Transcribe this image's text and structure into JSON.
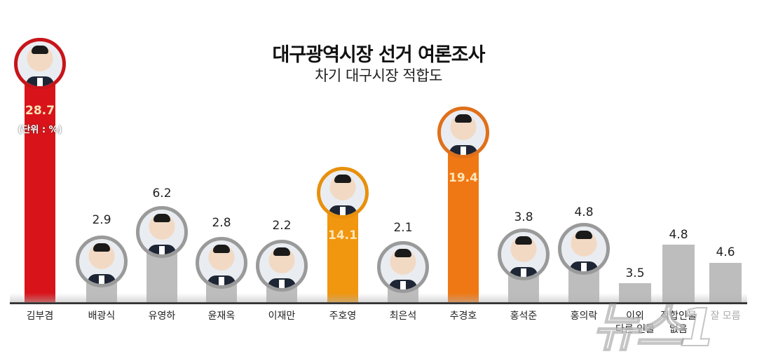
{
  "header": {
    "title": "대구광역시장 선거 여론조사",
    "subtitle": "차기 대구시장 적합도"
  },
  "unit_note": "(단위 : %)",
  "watermark": "뉴스1",
  "colors": {
    "kim_bujeom": "#d8141a",
    "ju_hoyeong": "#f0960f",
    "chu_gyeongho": "#f07814",
    "others": "#bdbdbd",
    "baseline": "#333333"
  },
  "chart_data": {
    "type": "bar",
    "title": "대구광역시장 선거 여론조사",
    "subtitle": "차기 대구시장 적합도",
    "unit": "%",
    "xlabel": "",
    "ylabel": "",
    "grid": false,
    "legend": "none",
    "categories": [
      "김부겸",
      "배광식",
      "유영하",
      "윤재옥",
      "이재만",
      "주호영",
      "최은석",
      "추경호",
      "홍석준",
      "홍의락",
      "이외 다른 인물",
      "적합인물 없음",
      "잘 모름"
    ],
    "values": [
      28.7,
      2.9,
      6.2,
      2.8,
      2.2,
      14.1,
      2.1,
      19.4,
      3.8,
      4.8,
      3.5,
      4.8,
      4.6
    ],
    "ylim": [
      0,
      30
    ]
  },
  "bars": [
    {
      "name": "김부겸",
      "value": "28.7"
    },
    {
      "name": "배광식",
      "value": "2.9"
    },
    {
      "name": "유영하",
      "value": "6.2"
    },
    {
      "name": "윤재옥",
      "value": "2.8"
    },
    {
      "name": "이재만",
      "value": "2.2"
    },
    {
      "name": "주호영",
      "value": "14.1"
    },
    {
      "name": "최은석",
      "value": "2.1"
    },
    {
      "name": "추경호",
      "value": "19.4"
    },
    {
      "name": "홍석준",
      "value": "3.8"
    },
    {
      "name": "홍의락",
      "value": "4.8"
    },
    {
      "name": "이외\n다른 인물",
      "value": "3.5"
    },
    {
      "name": "적합인물\n없음",
      "value": "4.8"
    },
    {
      "name": "잘 모름",
      "value": "4.6"
    }
  ]
}
